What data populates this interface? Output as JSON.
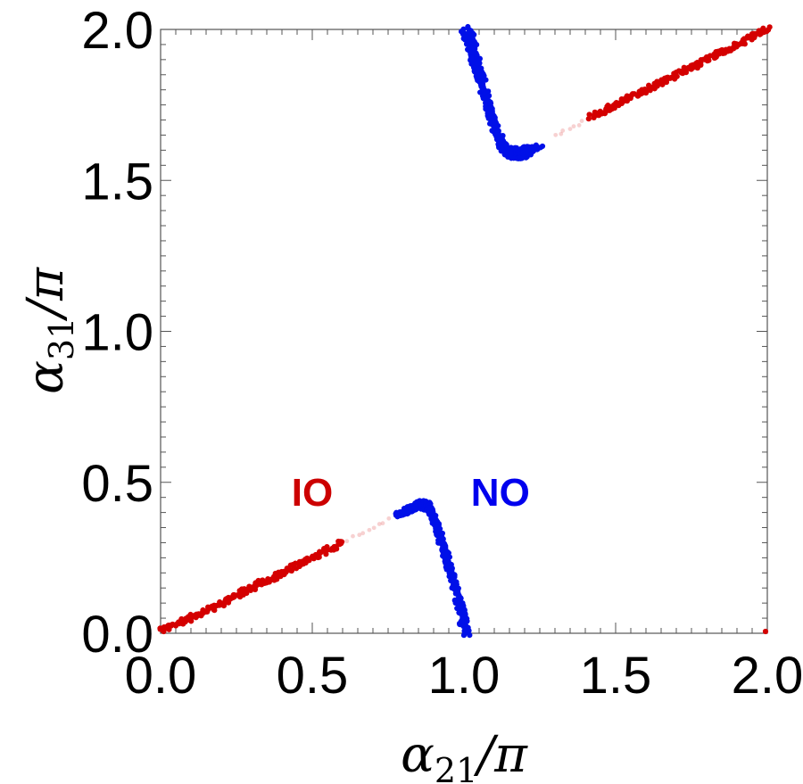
{
  "chart_data": {
    "type": "scatter",
    "xlabel": {
      "symbol": "α",
      "subscript": "21",
      "suffix": "/π"
    },
    "ylabel": {
      "symbol": "α",
      "subscript": "31",
      "suffix": "/π"
    },
    "xlim": [
      0,
      2
    ],
    "ylim": [
      0,
      2
    ],
    "xticks": [
      "0.0",
      "0.5",
      "1.0",
      "1.5",
      "2.0"
    ],
    "yticks": [
      "0.0",
      "0.5",
      "1.0",
      "1.5",
      "2.0"
    ],
    "tick_values": [
      0,
      0.5,
      1,
      1.5,
      2
    ],
    "grid": false,
    "annotations": [
      {
        "text": "IO",
        "x": 0.5,
        "y": 0.47,
        "color": "#cc0000"
      },
      {
        "text": "NO",
        "x": 1.12,
        "y": 0.47,
        "color": "#0000ee"
      }
    ],
    "series": [
      {
        "name": "IO",
        "color": "#d40000",
        "segments": [
          {
            "points": [
              [
                0.0,
                0.01
              ],
              [
                0.1,
                0.05
              ],
              [
                0.2,
                0.1
              ],
              [
                0.3,
                0.15
              ],
              [
                0.4,
                0.2
              ],
              [
                0.5,
                0.25
              ],
              [
                0.6,
                0.3
              ]
            ]
          },
          {
            "points": [
              [
                1.42,
                1.71
              ],
              [
                1.5,
                1.75
              ],
              [
                1.6,
                1.8
              ],
              [
                1.7,
                1.85
              ],
              [
                1.8,
                1.9
              ],
              [
                1.9,
                1.95
              ],
              [
                2.0,
                2.0
              ]
            ]
          }
        ],
        "faint_segments": [
          {
            "points": [
              [
                0.62,
                0.31
              ],
              [
                0.75,
                0.375
              ]
            ]
          },
          {
            "points": [
              [
                1.3,
                1.65
              ],
              [
                1.42,
                1.71
              ]
            ]
          }
        ],
        "extra_points": [
          [
            2.0,
            0.0
          ]
        ]
      },
      {
        "name": "NO",
        "color": "#0010e8",
        "segments": [
          {
            "points": [
              [
                0.78,
                0.39
              ],
              [
                0.82,
                0.41
              ],
              [
                0.86,
                0.42
              ],
              [
                0.89,
                0.41
              ],
              [
                0.91,
                0.35
              ],
              [
                0.94,
                0.25
              ],
              [
                0.97,
                0.15
              ],
              [
                1.0,
                0.0
              ]
            ]
          },
          {
            "points": [
              [
                0.8,
                0.4
              ],
              [
                0.85,
                0.43
              ],
              [
                0.88,
                0.43
              ],
              [
                0.9,
                0.39
              ],
              [
                0.93,
                0.3
              ],
              [
                0.96,
                0.2
              ],
              [
                0.99,
                0.1
              ],
              [
                1.01,
                0.0
              ]
            ]
          },
          {
            "points": [
              [
                1.0,
                2.0
              ],
              [
                1.03,
                1.9
              ],
              [
                1.06,
                1.8
              ],
              [
                1.09,
                1.7
              ],
              [
                1.12,
                1.61
              ],
              [
                1.15,
                1.58
              ],
              [
                1.19,
                1.58
              ],
              [
                1.23,
                1.6
              ]
            ]
          },
          {
            "points": [
              [
                1.02,
                2.0
              ],
              [
                1.05,
                1.88
              ],
              [
                1.08,
                1.76
              ],
              [
                1.11,
                1.66
              ],
              [
                1.14,
                1.6
              ],
              [
                1.18,
                1.6
              ],
              [
                1.25,
                1.61
              ]
            ]
          }
        ]
      }
    ]
  }
}
